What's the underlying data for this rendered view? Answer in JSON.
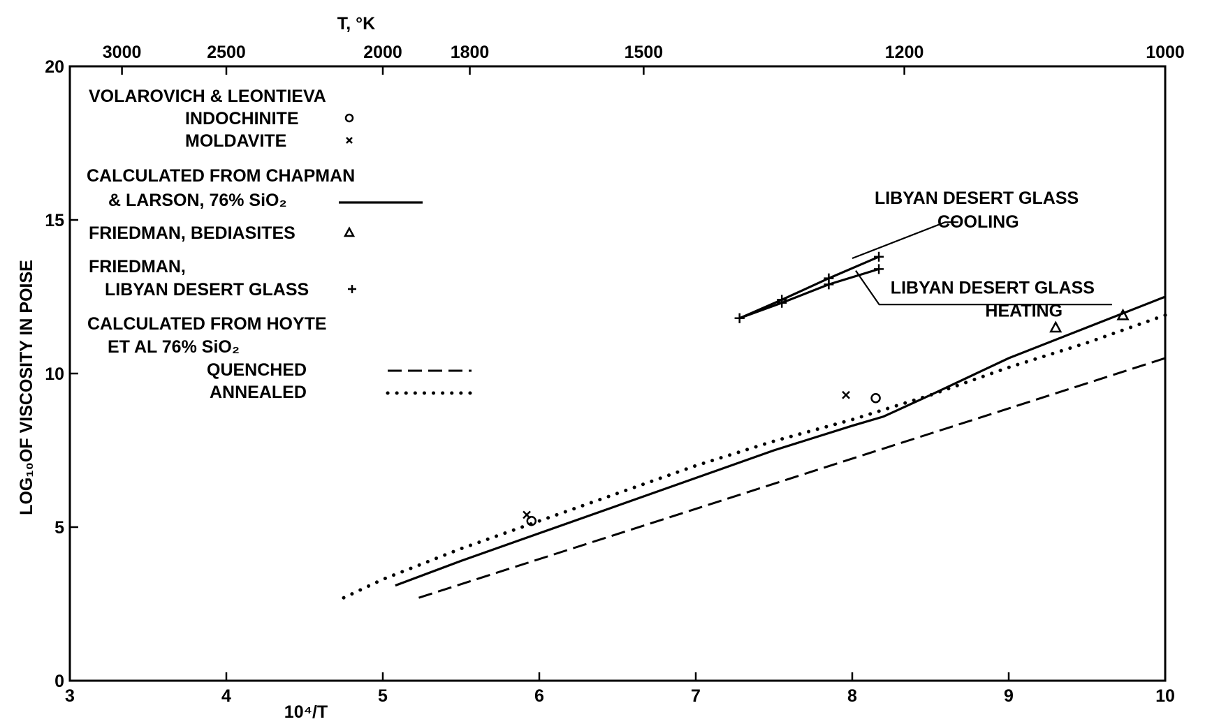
{
  "chart_data": {
    "type": "line",
    "title": "",
    "xlabel": "10⁴/T",
    "ylabel": "LOG₁₀OF VISCOSITY IN POISE",
    "top_axis_label": "T, °K",
    "xlim": [
      3,
      10
    ],
    "ylim": [
      0,
      20
    ],
    "x_ticks": [
      3,
      4,
      5,
      6,
      7,
      8,
      9,
      10
    ],
    "y_ticks": [
      0,
      5,
      10,
      15,
      20
    ],
    "top_ticks": [
      {
        "label": "3000",
        "x": 3.333
      },
      {
        "label": "2500",
        "x": 4.0
      },
      {
        "label": "2000",
        "x": 5.0
      },
      {
        "label": "1800",
        "x": 5.556
      },
      {
        "label": "1500",
        "x": 6.667
      },
      {
        "label": "1200",
        "x": 8.333
      },
      {
        "label": "1000",
        "x": 10.0
      }
    ],
    "grid": false,
    "legend": {
      "placement": "top-left",
      "entries": [
        {
          "lines": [
            "VOLAROVICH & LEONTIEVA"
          ]
        },
        {
          "lines": [
            "INDOCHINITE"
          ],
          "marker": "circle"
        },
        {
          "lines": [
            "MOLDAVITE"
          ],
          "marker": "x"
        },
        {
          "lines": [
            "CALCULATED FROM CHAPMAN",
            "& LARSON, 76% SiO₂"
          ],
          "style": "solid"
        },
        {
          "lines": [
            "FRIEDMAN, BEDIASITES"
          ],
          "marker": "triangle"
        },
        {
          "lines": [
            "FRIEDMAN,",
            "LIBYAN DESERT GLASS"
          ],
          "marker": "plus"
        },
        {
          "lines": [
            "CALCULATED FROM HOYTE",
            "ET AL 76% SiO₂"
          ]
        },
        {
          "lines": [
            "QUENCHED"
          ],
          "style": "dashed"
        },
        {
          "lines": [
            "ANNEALED"
          ],
          "style": "dotted"
        }
      ]
    },
    "series": [
      {
        "name": "CALCULATED FROM CHAPMAN & LARSON, 76% SiO₂",
        "style": "solid",
        "x": [
          5.08,
          5.5,
          6.0,
          6.5,
          7.0,
          7.5,
          8.0,
          8.2,
          8.5,
          9.0,
          9.5,
          10.0
        ],
        "y": [
          3.1,
          3.9,
          4.8,
          5.7,
          6.6,
          7.5,
          8.3,
          8.6,
          9.3,
          10.5,
          11.5,
          12.5
        ]
      },
      {
        "name": "QUENCHED",
        "style": "dashed",
        "x": [
          5.23,
          10.0
        ],
        "y": [
          2.7,
          10.5
        ]
      },
      {
        "name": "ANNEALED",
        "style": "dotted",
        "x": [
          4.75,
          5.0,
          5.5,
          6.0,
          6.5,
          7.0,
          7.5,
          8.0,
          8.5,
          9.0,
          9.5,
          10.0
        ],
        "y": [
          2.7,
          3.3,
          4.3,
          5.2,
          6.1,
          7.0,
          7.8,
          8.5,
          9.3,
          10.2,
          11.0,
          11.9
        ]
      },
      {
        "name": "LIBYAN DESERT GLASS COOLING",
        "style": "solid",
        "marker": "plus",
        "x": [
          7.28,
          7.55,
          7.85,
          8.17
        ],
        "y": [
          11.8,
          12.4,
          13.1,
          13.8
        ]
      },
      {
        "name": "LIBYAN DESERT GLASS HEATING",
        "style": "solid",
        "marker": "plus",
        "x": [
          7.28,
          7.55,
          7.85,
          8.17
        ],
        "y": [
          11.8,
          12.3,
          12.9,
          13.4
        ]
      }
    ],
    "points": [
      {
        "name": "INDOCHINITE",
        "marker": "circle",
        "x": [
          5.95,
          8.15
        ],
        "y": [
          5.2,
          9.2
        ]
      },
      {
        "name": "MOLDAVITE",
        "marker": "x",
        "x": [
          5.92,
          7.96
        ],
        "y": [
          5.4,
          9.3
        ]
      },
      {
        "name": "FRIEDMAN, BEDIASITES",
        "marker": "triangle",
        "x": [
          9.3,
          9.73
        ],
        "y": [
          11.5,
          11.9
        ]
      }
    ],
    "annotations": [
      {
        "lines": [
          "LIBYAN DESERT GLASS",
          "COOLING"
        ],
        "x": 8.75,
        "y": 15.2
      },
      {
        "lines": [
          "LIBYAN DESERT GLASS",
          "HEATING"
        ],
        "x": 8.9,
        "y": 12.6
      }
    ]
  }
}
